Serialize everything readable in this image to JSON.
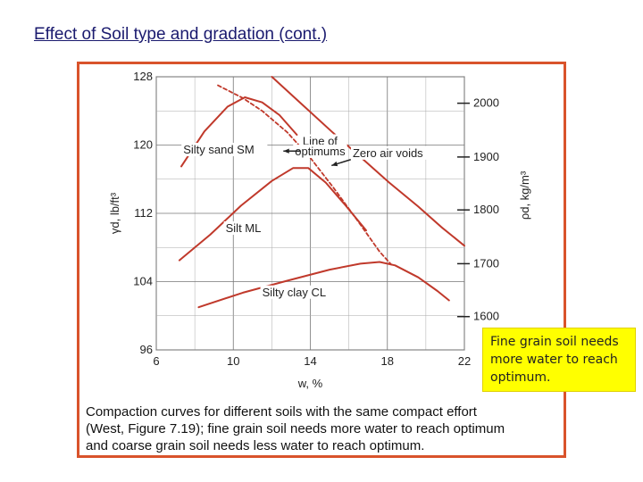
{
  "slide": {
    "title": "Effect of Soil type and gradation (cont.)"
  },
  "caption": {
    "lines": [
      "Compaction curves for different soils with the same compact effort",
      "(West, Figure 7.19); fine grain soil needs more water to reach optimum",
      "and coarse grain soil needs less water to reach optimum."
    ]
  },
  "callout": {
    "text": "Fine grain soil needs more water to reach optimum."
  },
  "colors": {
    "frame": "#d9532b",
    "curve": "#c0392b",
    "gridline": "#777777",
    "callout_bg": "#ffff00"
  },
  "chart_data": {
    "type": "line",
    "xlabel": "w, %",
    "ylabel": "γd, lb/ft³",
    "y2label": "ρd, kg/m³",
    "xlim": [
      6,
      22
    ],
    "ylim": [
      96,
      128
    ],
    "xticks": [
      6,
      10,
      14,
      18,
      22
    ],
    "yticks": [
      96,
      104,
      112,
      120,
      128
    ],
    "y2ticks": [
      {
        "label": "1600",
        "lb": 99.9
      },
      {
        "label": "1700",
        "lb": 106.1
      },
      {
        "label": "1800",
        "lb": 112.4
      },
      {
        "label": "1900",
        "lb": 118.6
      },
      {
        "label": "2000",
        "lb": 124.9
      }
    ],
    "grid": true,
    "series": [
      {
        "name": "Silty sand SM",
        "x": [
          7.3,
          8.5,
          9.7,
          10.6,
          11.5,
          12.4,
          13.3
        ],
        "y": [
          117.5,
          121.6,
          124.5,
          125.6,
          125.0,
          123.5,
          121.2
        ]
      },
      {
        "name": "Silt ML",
        "x": [
          7.2,
          8.8,
          10.4,
          12.0,
          13.1,
          13.9,
          14.8,
          15.8,
          16.9
        ],
        "y": [
          106.5,
          109.5,
          112.9,
          115.8,
          117.3,
          117.3,
          115.6,
          113.0,
          110.0
        ]
      },
      {
        "name": "Silty clay CL",
        "x": [
          8.2,
          10.5,
          12.8,
          15.0,
          16.6,
          17.6,
          18.4,
          19.6,
          20.6,
          21.2
        ],
        "y": [
          101.0,
          102.7,
          104.1,
          105.4,
          106.1,
          106.3,
          105.9,
          104.5,
          102.9,
          101.8
        ]
      },
      {
        "name": "Zero air voids",
        "x": [
          12.0,
          13.5,
          15.1,
          16.6,
          18.1,
          19.6,
          20.8,
          22.0
        ],
        "y": [
          128.0,
          124.9,
          121.6,
          118.6,
          115.6,
          112.8,
          110.4,
          108.2
        ]
      },
      {
        "name": "Line of optimums",
        "x": [
          9.2,
          10.5,
          11.5,
          12.8,
          14.0,
          15.2,
          16.5,
          17.6,
          18.2
        ],
        "y": [
          127.0,
          125.5,
          124.0,
          121.5,
          118.5,
          115.0,
          111.0,
          107.5,
          106.0
        ]
      }
    ],
    "annotations": [
      {
        "text": "Silty sand SM",
        "x": 7.4,
        "y": 119.0
      },
      {
        "text": "Line of",
        "x": 13.6,
        "y": 120.0
      },
      {
        "text": "optimums",
        "x": 13.2,
        "y": 118.8
      },
      {
        "text": "Zero air voids",
        "x": 16.2,
        "y": 118.6
      },
      {
        "text": "Silt ML",
        "x": 9.6,
        "y": 109.8
      },
      {
        "text": "Silty clay CL",
        "x": 11.5,
        "y": 102.3
      }
    ]
  }
}
